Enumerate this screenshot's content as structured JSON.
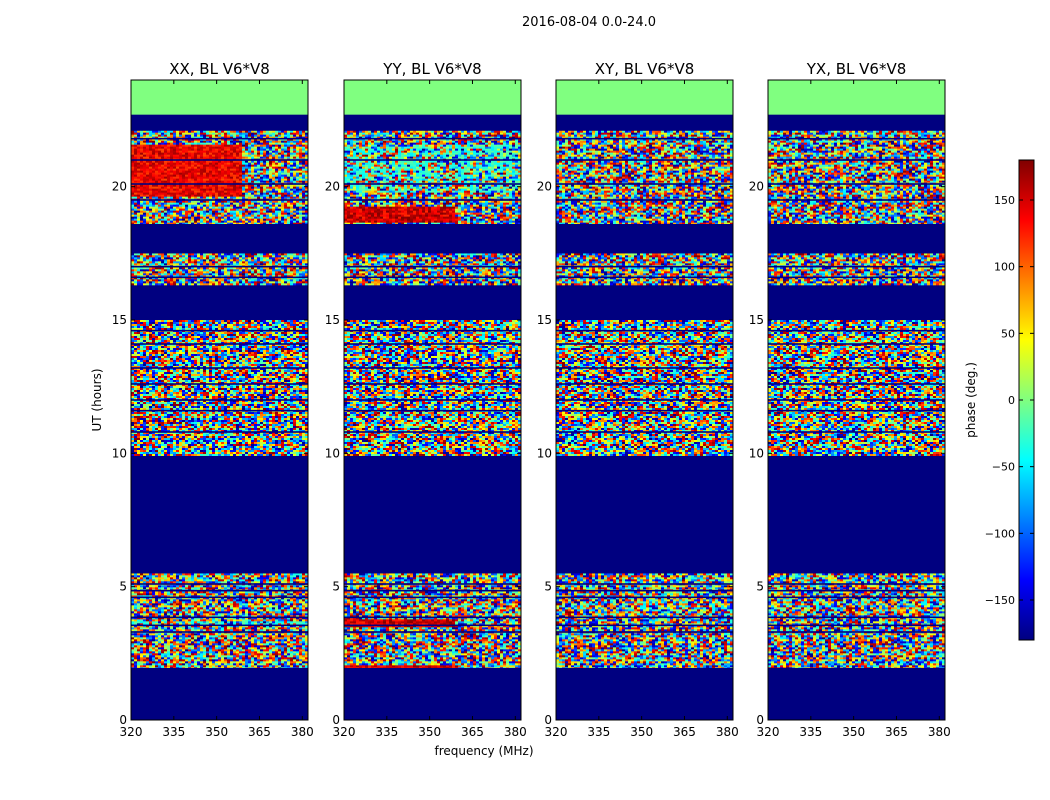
{
  "chart_data": {
    "type": "heatmap",
    "title": "2016-08-04 0.0-24.0",
    "xlabel": "frequency (MHz)",
    "ylabel": "UT (hours)",
    "xlim": [
      320,
      382
    ],
    "ylim": [
      0,
      24
    ],
    "xticks": [
      320,
      335,
      350,
      365,
      380
    ],
    "yticks": [
      0,
      5,
      10,
      15,
      20
    ],
    "colorbar": {
      "label": "phase (deg.)",
      "range": [
        -180,
        180
      ],
      "ticks": [
        -150,
        -100,
        -50,
        0,
        50,
        100,
        150
      ],
      "tick_labels": [
        "−150",
        "−100",
        "−50",
        "0",
        "50",
        "100",
        "150"
      ],
      "colormap": [
        "#000080",
        "#0000ff",
        "#0080ff",
        "#00ffff",
        "#80ff80",
        "#ffff00",
        "#ff8000",
        "#ff0000",
        "#800000"
      ]
    },
    "panels": [
      {
        "title": "XX, BL V6*V8",
        "low_freq_bias": [
          [
            19.7,
            21.6,
            140
          ]
        ],
        "bright_rows": [
          [
            3.6,
            3.75
          ]
        ]
      },
      {
        "title": "YY, BL V6*V8",
        "low_freq_bias": [
          [
            18.7,
            19.3,
            150
          ],
          [
            3.5,
            3.8,
            150
          ],
          [
            1.95,
            2.1,
            150
          ]
        ],
        "bright_rows": [
          [
            19.8,
            21.6
          ]
        ]
      },
      {
        "title": "XY, BL V6*V8",
        "low_freq_bias": [],
        "bright_rows": []
      },
      {
        "title": "YX, BL V6*V8",
        "low_freq_bias": [],
        "bright_rows": []
      }
    ],
    "flagged_blue_hours": [
      [
        0,
        1.95
      ],
      [
        5.5,
        9.9
      ],
      [
        15.0,
        16.3
      ],
      [
        17.5,
        18.6
      ],
      [
        22.1,
        22.2
      ]
    ],
    "flagged_green_hours": [
      [
        22.7,
        24
      ]
    ],
    "noise_bands_hours": [
      [
        1.95,
        5.5
      ],
      [
        9.9,
        15.0
      ],
      [
        16.3,
        17.5
      ],
      [
        18.6,
        22.1
      ]
    ],
    "gap_lines_hours": [
      5.1,
      4.85,
      4.6,
      3.85,
      3.55,
      3.3,
      10.8,
      11.6,
      12.0,
      12.6,
      13.2,
      14.1,
      14.6,
      16.6,
      17.0,
      19.5,
      20.1,
      21.0,
      21.8,
      22.3,
      22.45,
      22.6
    ]
  }
}
